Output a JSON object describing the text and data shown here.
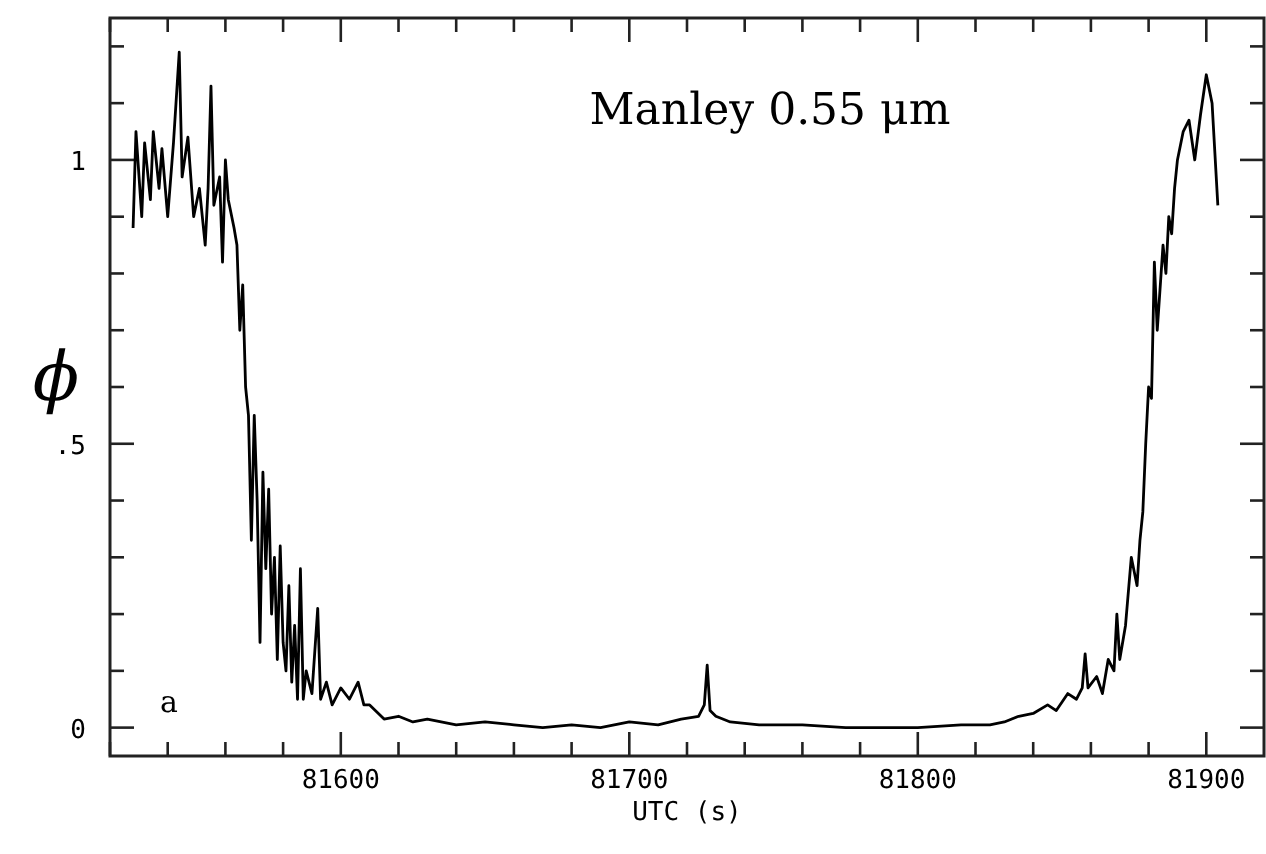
{
  "chart_data": {
    "type": "line",
    "title": "Manley 0.55 μm",
    "xlabel": "UTC (s)",
    "ylabel": "ϕ",
    "annotations": [
      "a"
    ],
    "xlim": [
      81520,
      81920
    ],
    "ylim": [
      -0.05,
      1.25
    ],
    "xticks": [
      {
        "value": 81520,
        "label": null
      },
      {
        "value": 81540,
        "label": null
      },
      {
        "value": 81560,
        "label": null
      },
      {
        "value": 81580,
        "label": null
      },
      {
        "value": 81600,
        "label": "81600"
      },
      {
        "value": 81620,
        "label": null
      },
      {
        "value": 81640,
        "label": null
      },
      {
        "value": 81660,
        "label": null
      },
      {
        "value": 81680,
        "label": null
      },
      {
        "value": 81700,
        "label": "81700"
      },
      {
        "value": 81720,
        "label": null
      },
      {
        "value": 81740,
        "label": null
      },
      {
        "value": 81760,
        "label": null
      },
      {
        "value": 81780,
        "label": null
      },
      {
        "value": 81800,
        "label": "81800"
      },
      {
        "value": 81820,
        "label": null
      },
      {
        "value": 81840,
        "label": null
      },
      {
        "value": 81860,
        "label": null
      },
      {
        "value": 81880,
        "label": null
      },
      {
        "value": 81900,
        "label": "81900"
      }
    ],
    "yticks": [
      {
        "value": 0,
        "label": "0"
      },
      {
        "value": 0.1,
        "label": null
      },
      {
        "value": 0.2,
        "label": null
      },
      {
        "value": 0.3,
        "label": null
      },
      {
        "value": 0.4,
        "label": null
      },
      {
        "value": 0.5,
        "label": ".5"
      },
      {
        "value": 0.6,
        "label": null
      },
      {
        "value": 0.7,
        "label": null
      },
      {
        "value": 0.8,
        "label": null
      },
      {
        "value": 0.9,
        "label": null
      },
      {
        "value": 1,
        "label": "1"
      },
      {
        "value": 1.1,
        "label": null
      },
      {
        "value": 1.2,
        "label": null
      }
    ],
    "marker": "none",
    "line_style": "solid",
    "grid": false,
    "series": [
      {
        "color": "#000000",
        "x": [
          81528,
          81529,
          81531,
          81532,
          81534,
          81535,
          81537,
          81538,
          81540,
          81542,
          81544,
          81545,
          81547,
          81549,
          81551,
          81553,
          81554,
          81555,
          81556,
          81558,
          81559,
          81560,
          81561,
          81563,
          81564,
          81565,
          81566,
          81567,
          81568,
          81569,
          81570,
          81571,
          81572,
          81573,
          81574,
          81575,
          81576,
          81577,
          81578,
          81579,
          81580,
          81581,
          81582,
          81583,
          81584,
          81585,
          81586,
          81587,
          81588,
          81590,
          81592,
          81593,
          81595,
          81597,
          81600,
          81603,
          81606,
          81608,
          81610,
          81615,
          81620,
          81625,
          81630,
          81640,
          81650,
          81660,
          81670,
          81680,
          81690,
          81700,
          81710,
          81718,
          81724,
          81726,
          81727,
          81728,
          81730,
          81735,
          81745,
          81760,
          81775,
          81790,
          81800,
          81815,
          81825,
          81830,
          81835,
          81840,
          81845,
          81848,
          81852,
          81855,
          81857,
          81858,
          81859,
          81862,
          81864,
          81866,
          81868,
          81869,
          81870,
          81872,
          81874,
          81876,
          81877,
          81878,
          81879,
          81880,
          81881,
          81882,
          81883,
          81885,
          81886,
          81887,
          81888,
          81889,
          81890,
          81892,
          81894,
          81896,
          81898,
          81900,
          81902,
          81904
        ],
        "values": [
          0.88,
          1.05,
          0.9,
          1.03,
          0.93,
          1.05,
          0.95,
          1.02,
          0.9,
          1.03,
          1.19,
          0.97,
          1.04,
          0.9,
          0.95,
          0.85,
          0.95,
          1.13,
          0.92,
          0.97,
          0.82,
          1.0,
          0.93,
          0.88,
          0.85,
          0.7,
          0.78,
          0.6,
          0.55,
          0.33,
          0.55,
          0.4,
          0.15,
          0.45,
          0.28,
          0.42,
          0.2,
          0.3,
          0.12,
          0.32,
          0.15,
          0.1,
          0.25,
          0.08,
          0.18,
          0.05,
          0.28,
          0.05,
          0.1,
          0.06,
          0.21,
          0.05,
          0.08,
          0.04,
          0.07,
          0.05,
          0.08,
          0.04,
          0.04,
          0.015,
          0.02,
          0.01,
          0.015,
          0.005,
          0.01,
          0.005,
          0.0,
          0.005,
          0.0,
          0.01,
          0.005,
          0.015,
          0.02,
          0.04,
          0.11,
          0.03,
          0.02,
          0.01,
          0.005,
          0.005,
          0.0,
          0.0,
          0.0,
          0.005,
          0.005,
          0.01,
          0.02,
          0.025,
          0.04,
          0.03,
          0.06,
          0.05,
          0.07,
          0.13,
          0.07,
          0.09,
          0.06,
          0.12,
          0.1,
          0.2,
          0.12,
          0.18,
          0.3,
          0.25,
          0.33,
          0.38,
          0.5,
          0.6,
          0.58,
          0.82,
          0.7,
          0.85,
          0.8,
          0.9,
          0.87,
          0.95,
          1.0,
          1.05,
          1.07,
          1.0,
          1.08,
          1.15,
          1.1,
          0.92
        ]
      }
    ]
  }
}
